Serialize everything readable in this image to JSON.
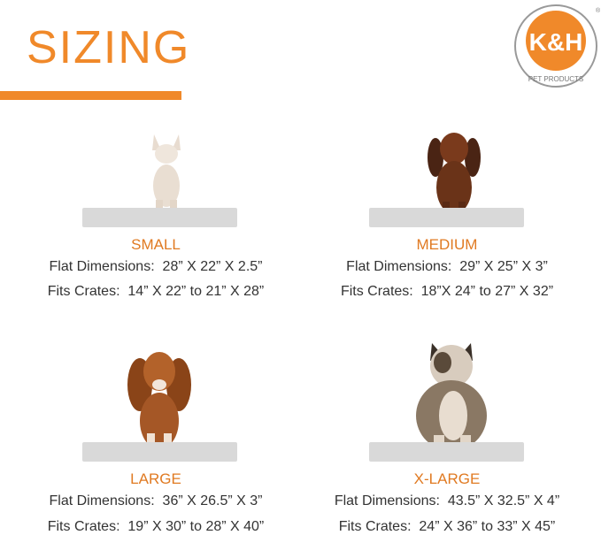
{
  "header": {
    "title": "SIZING",
    "accent_color": "#f0892a"
  },
  "logo": {
    "text": "K&H",
    "subtext": "PET PRODUCTS",
    "registered": "®"
  },
  "sizes": [
    {
      "name": "SMALL",
      "flat": "Flat Dimensions:  28” X 22” X 2.5”",
      "crates": "Fits Crates:  14” X 22” to 21” X 28”",
      "dog": "chihuahua"
    },
    {
      "name": "MEDIUM",
      "flat": "Flat Dimensions:  29” X 25” X 3”",
      "crates": "Fits Crates:  18”X 24” to 27” X 32”",
      "dog": "dachshund"
    },
    {
      "name": "LARGE",
      "flat": "Flat Dimensions:  36” X 26.5” X 3”",
      "crates": "Fits Crates:  19” X 30” to 28” X 40”",
      "dog": "cavalier-spaniel"
    },
    {
      "name": "X-LARGE",
      "flat": "Flat Dimensions:  43.5” X 32.5” X 4”",
      "crates": "Fits Crates:  24” X 36” to 33” X 45”",
      "dog": "bulldog"
    }
  ]
}
